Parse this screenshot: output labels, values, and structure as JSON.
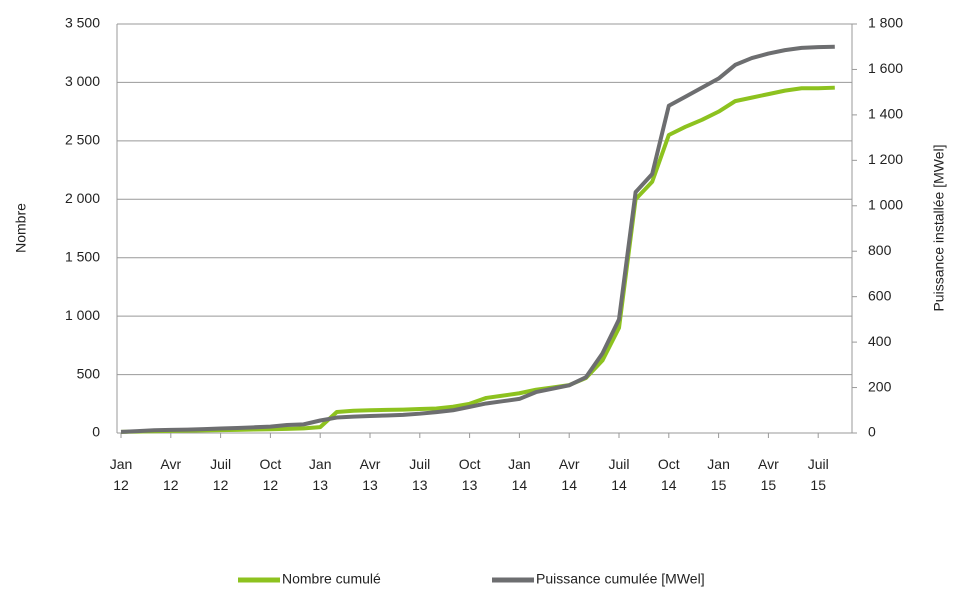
{
  "chart_data": {
    "type": "line",
    "categories": [
      "Jan 12",
      null,
      null,
      "Avr 12",
      null,
      null,
      "Juil 12",
      null,
      null,
      "Oct 12",
      null,
      null,
      "Jan 13",
      null,
      null,
      "Avr 13",
      null,
      null,
      "Juil 13",
      null,
      null,
      "Oct 13",
      null,
      null,
      "Jan 14",
      null,
      null,
      "Avr 14",
      null,
      null,
      "Juil 14",
      null,
      null,
      "Oct 14",
      null,
      null,
      "Jan 15",
      null,
      null,
      "Avr 15",
      null,
      null,
      "Juil 15",
      null
    ],
    "series": [
      {
        "name": "Nombre cumulé",
        "color": "#8dc21f",
        "values": [
          10,
          12,
          15,
          18,
          20,
          22,
          25,
          27,
          30,
          32,
          35,
          40,
          50,
          180,
          190,
          195,
          198,
          200,
          205,
          210,
          225,
          250,
          300,
          320,
          340,
          370,
          390,
          410,
          470,
          620,
          900,
          2000,
          2150,
          2550,
          2620,
          2680,
          2750,
          2840,
          2870,
          2900,
          2930,
          2950,
          2950,
          2955
        ]
      },
      {
        "name": "Puissance cumulée [MWel]",
        "color": "#6d6e70",
        "axis": "y2",
        "values": [
          5,
          8,
          12,
          14,
          15,
          17,
          20,
          22,
          25,
          28,
          35,
          38,
          55,
          68,
          72,
          75,
          77,
          80,
          85,
          92,
          100,
          115,
          130,
          140,
          150,
          180,
          195,
          210,
          245,
          350,
          500,
          1060,
          1140,
          1440,
          1480,
          1520,
          1560,
          1620,
          1650,
          1670,
          1685,
          1695,
          1698,
          1700
        ]
      }
    ],
    "ylabel": "Nombre",
    "y2label": "Puissance installée [MWel]",
    "ylim": [
      0,
      3500
    ],
    "yticks": [
      0,
      500,
      {
        "value": 1000,
        "label": "1 000"
      },
      {
        "value": 1500,
        "label": "1 500"
      },
      {
        "value": 2000,
        "label": "2 000"
      },
      {
        "value": 2500,
        "label": "2 500"
      },
      {
        "value": 3000,
        "label": "3 000"
      },
      {
        "value": 3500,
        "label": "3 500"
      }
    ],
    "y2lim": [
      0,
      1800
    ],
    "y2ticks": [
      0,
      200,
      400,
      600,
      800,
      {
        "value": 1000,
        "label": "1 000"
      },
      {
        "value": 1200,
        "label": "1 200"
      },
      {
        "value": 1400,
        "label": "1 400"
      },
      {
        "value": 1600,
        "label": "1 600"
      },
      {
        "value": 1800,
        "label": "1 800"
      }
    ],
    "grid": true,
    "legend": "bottom"
  }
}
